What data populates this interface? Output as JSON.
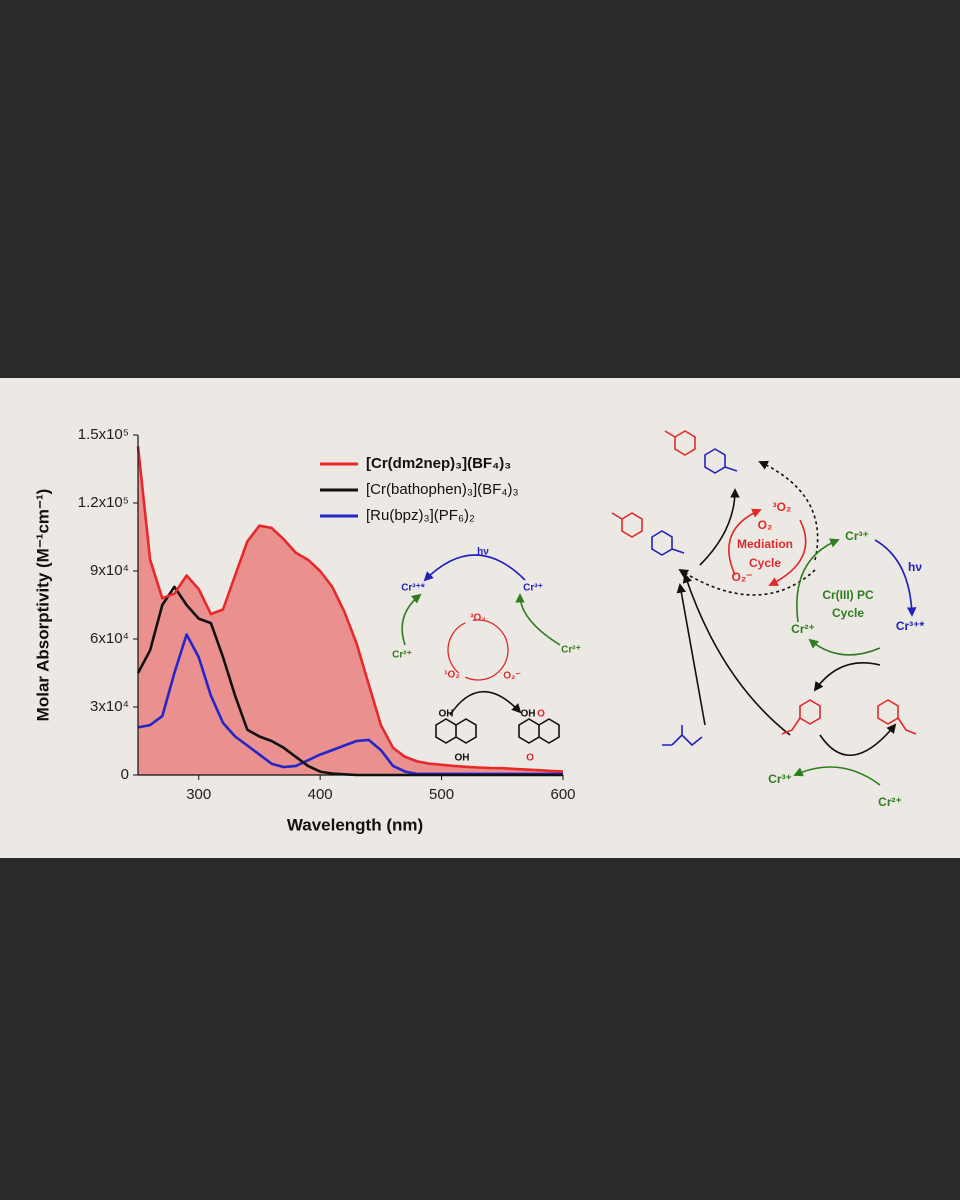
{
  "chart_data": {
    "type": "line",
    "xlabel": "Wavelength (nm)",
    "ylabel": "Molar Absorptivity (M⁻¹cm⁻¹)",
    "x": [
      250,
      260,
      270,
      280,
      290,
      300,
      310,
      320,
      330,
      340,
      350,
      360,
      370,
      380,
      390,
      400,
      410,
      420,
      430,
      440,
      450,
      460,
      470,
      480,
      490,
      500,
      510,
      520,
      530,
      540,
      550,
      560,
      570,
      580,
      590,
      600
    ],
    "series": [
      {
        "name": "[Cr(dm2nep)₃](BF₄)₃",
        "color": "#e8292b",
        "fill": true,
        "values": [
          145000,
          95000,
          78000,
          80000,
          88000,
          82000,
          71000,
          73000,
          88000,
          103000,
          110000,
          109000,
          104000,
          98000,
          95000,
          90000,
          83000,
          72000,
          58000,
          40000,
          22000,
          12000,
          8000,
          6000,
          5000,
          4500,
          4000,
          3600,
          3300,
          3100,
          3000,
          2700,
          2400,
          2100,
          1800,
          1500
        ]
      },
      {
        "name": "[Cr(bathophen)₃](BF₄)₃",
        "color": "#111111",
        "fill": false,
        "values": [
          45000,
          55000,
          75000,
          83000,
          75000,
          69000,
          67000,
          52000,
          35000,
          20000,
          17000,
          15000,
          12000,
          8000,
          4000,
          1500,
          600,
          300,
          0,
          0,
          0,
          0,
          0,
          0,
          0,
          0,
          0,
          0,
          0,
          0,
          0,
          0,
          0,
          0,
          0,
          0
        ]
      },
      {
        "name": "[Ru(bpz)₃](PF₆)₂",
        "color": "#2525c8",
        "fill": false,
        "values": [
          21000,
          22000,
          26000,
          45000,
          62000,
          52000,
          35000,
          23000,
          17000,
          13000,
          9000,
          5000,
          3500,
          4000,
          6500,
          9000,
          11000,
          13000,
          15000,
          15500,
          11000,
          4000,
          1500,
          500,
          500,
          500,
          500,
          500,
          500,
          500,
          500,
          500,
          500,
          500,
          500,
          500
        ]
      }
    ],
    "xlim": [
      250,
      600
    ],
    "xticks": [
      300,
      400,
      500,
      600
    ],
    "ylim": [
      0,
      150000
    ],
    "yticks": [
      0,
      {
        "value": 30000,
        "label": "3x10⁴"
      },
      {
        "value": 60000,
        "label": "6x10⁴"
      },
      {
        "value": 90000,
        "label": "9x10⁴"
      },
      {
        "value": 120000,
        "label": "1.2x10⁵"
      },
      {
        "value": 150000,
        "label": "1.5x10⁵"
      }
    ],
    "legend": "upper right",
    "grid": false
  },
  "inset_scheme": {
    "labels": [
      "hν",
      "Cr³⁺*",
      "Cr³⁺",
      "³O₂",
      "Cr²⁺",
      "Cr²⁺",
      "¹O₂",
      "O₂⁻",
      "OH",
      "OH",
      "OH",
      "O",
      "O"
    ]
  },
  "mechanism": {
    "labels": [
      "³O₂",
      "O₂",
      "Mediation",
      "Cycle",
      "O₂⁻",
      "Cr³⁺",
      "hν",
      "Cr(III) PC",
      "Cycle",
      "Cr²⁺",
      "Cr³⁺*",
      "Cr³⁺",
      "Cr²⁺"
    ]
  }
}
